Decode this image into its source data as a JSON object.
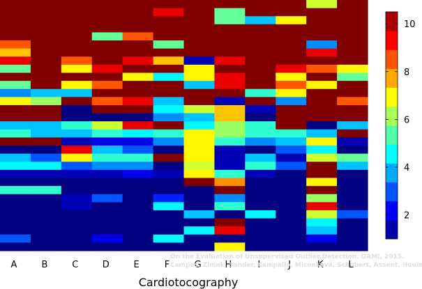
{
  "chart_data": {
    "type": "heatmap",
    "xlabel": "Cardiotocography",
    "columns": [
      "A",
      "B",
      "C",
      "D",
      "E",
      "F",
      "G",
      "H",
      "I",
      "J",
      "K",
      "L"
    ],
    "row_count": 31,
    "color_range": [
      1,
      10.5
    ],
    "colorbar_ticks": [
      2,
      4,
      6,
      8,
      10
    ],
    "colormap": "jet",
    "grid": false,
    "colorbar_position": "right",
    "watermark": {
      "line1": "On the Evaluation of Unsupervised Outlier Detection. DAMI, 2015.",
      "line2": "Campos, Zimek, Sander, Campello, Micenková, Schubert, Assent, Houle"
    },
    "values": [
      [
        10.5,
        10.5,
        10.5,
        10.5,
        10.5,
        10.5,
        10.5,
        10.5,
        10.5,
        10.5,
        6.5,
        10.5
      ],
      [
        10.5,
        10.5,
        10.5,
        10.5,
        10.5,
        9.5,
        10.5,
        5.5,
        10.5,
        10.5,
        10.5,
        10.5
      ],
      [
        10.5,
        10.5,
        10.5,
        10.5,
        10.5,
        10.5,
        10.5,
        5.5,
        4,
        7,
        10.5,
        10.5
      ],
      [
        10.5,
        10.5,
        10.5,
        10.5,
        10.5,
        10.5,
        10.5,
        10.5,
        10.5,
        10.5,
        10.5,
        10.5
      ],
      [
        10.5,
        10.5,
        10.5,
        5.5,
        8.5,
        10.5,
        10.5,
        10.5,
        10.5,
        10.5,
        10.5,
        10.5
      ],
      [
        8.5,
        10.5,
        10.5,
        10.5,
        10.5,
        5.5,
        10.5,
        10.5,
        10.5,
        10.5,
        3.5,
        10.5
      ],
      [
        7.5,
        10.5,
        10.5,
        10.5,
        10.5,
        10.5,
        10.5,
        10.5,
        10.5,
        10.5,
        9.5,
        10.5
      ],
      [
        9.5,
        10.5,
        8.5,
        10.5,
        9.5,
        7.5,
        1.5,
        9.5,
        10.5,
        10.5,
        10.5,
        10.5
      ],
      [
        5.5,
        10.5,
        7,
        9.5,
        10.5,
        10.5,
        7,
        10.5,
        10.5,
        9.5,
        8.5,
        7
      ],
      [
        10.5,
        10.5,
        10.5,
        10.5,
        7,
        4.5,
        7,
        9.5,
        10.5,
        7,
        10.5,
        5.5
      ],
      [
        5.5,
        10.5,
        7,
        8.5,
        10.5,
        10.5,
        4,
        9.5,
        10.5,
        8.5,
        7,
        10.5
      ],
      [
        3.5,
        4,
        4,
        10.5,
        10.5,
        10.5,
        10.5,
        10.5,
        5,
        7,
        10.5,
        10.5
      ],
      [
        7,
        6,
        10.5,
        8.5,
        9.5,
        4,
        10.5,
        1.5,
        10.5,
        3.5,
        10.5,
        8.5
      ],
      [
        10.5,
        10.5,
        1,
        10.5,
        10.5,
        4.5,
        6.5,
        7.5,
        1.5,
        10.5,
        10.5,
        10.5
      ],
      [
        10.5,
        10.5,
        1,
        1,
        1,
        3.5,
        4,
        7.5,
        1,
        10.5,
        10.5,
        10.5
      ],
      [
        4,
        4,
        5,
        6.5,
        9.5,
        10.5,
        4.5,
        6,
        5,
        10.5,
        1,
        4
      ],
      [
        5,
        4,
        4,
        5,
        4.5,
        5,
        7,
        6,
        5,
        5,
        4,
        10.5
      ],
      [
        10.5,
        10.5,
        1.5,
        2,
        2,
        3.5,
        7,
        5,
        3.5,
        4,
        7,
        1.5
      ],
      [
        1,
        1,
        9.5,
        4,
        3,
        1,
        7,
        1.5,
        1,
        3,
        4.5,
        1
      ],
      [
        4,
        3,
        7,
        5,
        5,
        10.5,
        7,
        1.5,
        4,
        1.5,
        6.5,
        5.5
      ],
      [
        4.5,
        4.5,
        3,
        3.5,
        3.5,
        1,
        6.5,
        1.5,
        5,
        3,
        10.5,
        4
      ],
      [
        1.5,
        1.5,
        1.5,
        1.5,
        2,
        1.5,
        7,
        5,
        1.5,
        1,
        10.5,
        1
      ],
      [
        1,
        1,
        1,
        1,
        1,
        1,
        10.5,
        8,
        1,
        1,
        7,
        1
      ],
      [
        5,
        5,
        1,
        1,
        1,
        1,
        1,
        10.5,
        1,
        1,
        10.5,
        1
      ],
      [
        1,
        1,
        1.5,
        3,
        1,
        2.5,
        1,
        3.5,
        1,
        1,
        6,
        1
      ],
      [
        1,
        1,
        1.5,
        1,
        1,
        4.5,
        1,
        5,
        1,
        1,
        9.5,
        1
      ],
      [
        1,
        1,
        1,
        1,
        1,
        1,
        4,
        1,
        4.5,
        1,
        6.5,
        3
      ],
      [
        1,
        1,
        1,
        1,
        1,
        1,
        1,
        10.5,
        1,
        1,
        4.5,
        1
      ],
      [
        1,
        1,
        1,
        1,
        1,
        1,
        4.5,
        9.5,
        1,
        1,
        4,
        1
      ],
      [
        3,
        1,
        1,
        2,
        1,
        4.5,
        1,
        1,
        1,
        1,
        2,
        1
      ],
      [
        1,
        1,
        1,
        1,
        1,
        1,
        1,
        7,
        1,
        1,
        1,
        1
      ]
    ]
  }
}
